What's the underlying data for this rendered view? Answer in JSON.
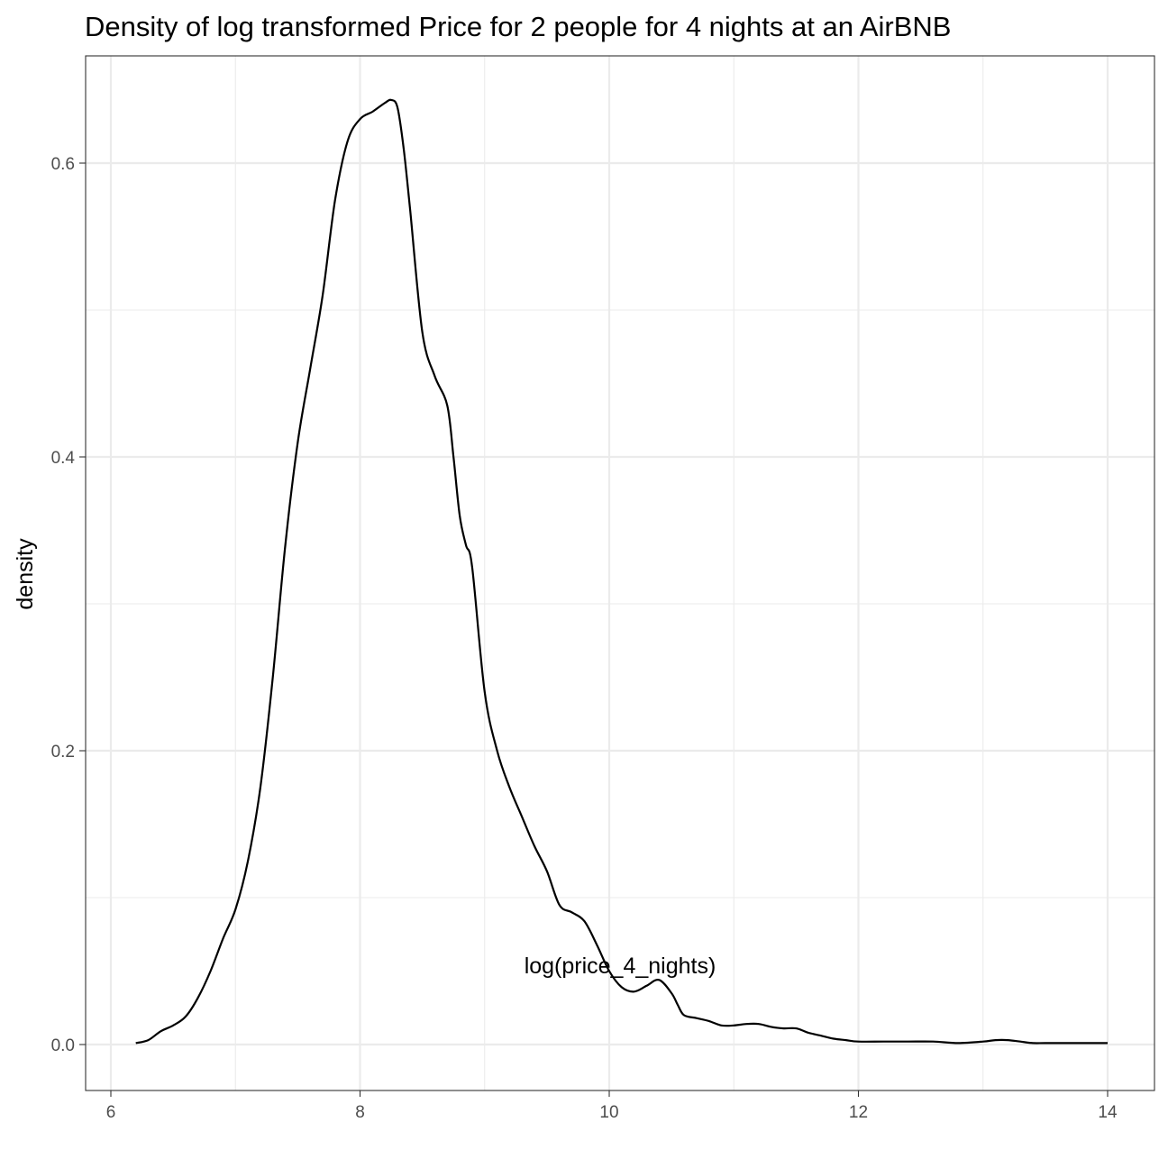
{
  "chart_data": {
    "type": "line",
    "title": "Density of  log transformed Price for 2 people for 4 nights at an AirBNB",
    "xlabel": "log(price_4_nights)",
    "ylabel": "density",
    "xlim": [
      6,
      14
    ],
    "ylim": [
      0,
      0.65
    ],
    "x_ticks": [
      6,
      8,
      10,
      12,
      14
    ],
    "y_ticks": [
      0.0,
      0.2,
      0.4,
      0.6
    ],
    "x_tick_labels": [
      "6",
      "8",
      "10",
      "12",
      "14"
    ],
    "y_tick_labels": [
      "0.0",
      "0.2",
      "0.4",
      "0.6"
    ],
    "grid": true,
    "theme": "bw",
    "series": [
      {
        "color": "#000000",
        "x": [
          6.2,
          6.3,
          6.4,
          6.5,
          6.6,
          6.7,
          6.8,
          6.9,
          7.0,
          7.1,
          7.2,
          7.3,
          7.4,
          7.5,
          7.6,
          7.7,
          7.8,
          7.9,
          8.0,
          8.1,
          8.2,
          8.25,
          8.3,
          8.35,
          8.4,
          8.5,
          8.6,
          8.7,
          8.75,
          8.8,
          8.85,
          8.9,
          9.0,
          9.1,
          9.2,
          9.3,
          9.4,
          9.5,
          9.6,
          9.7,
          9.8,
          9.9,
          10.0,
          10.1,
          10.2,
          10.3,
          10.4,
          10.5,
          10.55,
          10.6,
          10.7,
          10.8,
          10.9,
          11.0,
          11.1,
          11.2,
          11.3,
          11.4,
          11.5,
          11.6,
          11.7,
          11.8,
          11.9,
          12.0,
          12.2,
          12.4,
          12.6,
          12.8,
          13.0,
          13.1,
          13.2,
          13.3,
          13.4,
          13.5,
          13.7,
          13.9,
          14.0
        ],
        "y": [
          0.001,
          0.003,
          0.009,
          0.013,
          0.019,
          0.032,
          0.05,
          0.072,
          0.092,
          0.125,
          0.175,
          0.25,
          0.34,
          0.41,
          0.46,
          0.51,
          0.575,
          0.615,
          0.63,
          0.635,
          0.641,
          0.643,
          0.638,
          0.61,
          0.57,
          0.485,
          0.455,
          0.435,
          0.4,
          0.36,
          0.34,
          0.325,
          0.24,
          0.2,
          0.175,
          0.155,
          0.135,
          0.118,
          0.095,
          0.09,
          0.084,
          0.068,
          0.05,
          0.039,
          0.036,
          0.04,
          0.044,
          0.035,
          0.027,
          0.02,
          0.018,
          0.016,
          0.013,
          0.013,
          0.014,
          0.014,
          0.012,
          0.011,
          0.011,
          0.008,
          0.006,
          0.004,
          0.003,
          0.002,
          0.002,
          0.002,
          0.002,
          0.001,
          0.002,
          0.003,
          0.003,
          0.002,
          0.001,
          0.001,
          0.001,
          0.001,
          0.001
        ]
      }
    ]
  }
}
